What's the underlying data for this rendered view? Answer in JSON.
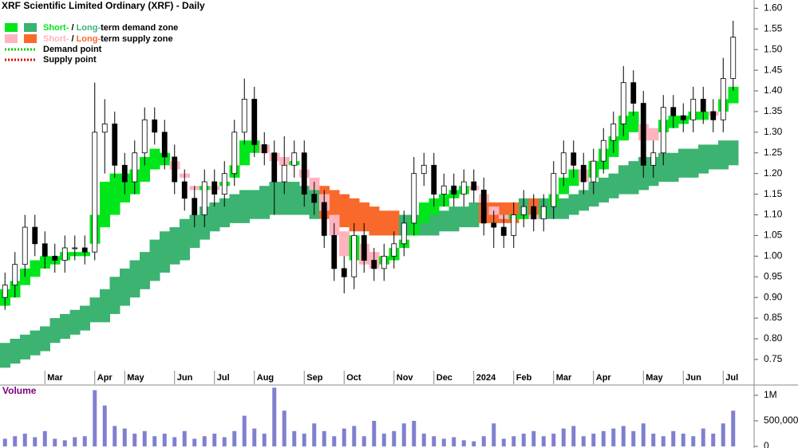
{
  "chart_data": {
    "type": "candlestick",
    "title": "XRF Scientific Limited Ordinary (XRF) - Daily",
    "legend": [
      [
        "Short-",
        " / ",
        "Long-",
        "term demand zone"
      ],
      [
        "Short-",
        " / ",
        "Long-",
        "term supply zone"
      ],
      "Demand point",
      "Supply point"
    ],
    "xlim": [
      -0.5,
      75.1
    ],
    "xticks": [
      {
        "value": 4,
        "label": "Mar"
      },
      {
        "value": 9,
        "label": "Apr"
      },
      {
        "value": 12,
        "label": "May"
      },
      {
        "value": 17,
        "label": "Jun"
      },
      {
        "value": 21,
        "label": "Jul"
      },
      {
        "value": 25,
        "label": "Aug"
      },
      {
        "value": 30,
        "label": "Sep"
      },
      {
        "value": 34,
        "label": "Oct"
      },
      {
        "value": 39,
        "label": "Nov"
      },
      {
        "value": 43,
        "label": "Dec"
      },
      {
        "value": 47,
        "label": "2024"
      },
      {
        "value": 51,
        "label": "Feb"
      },
      {
        "value": 55,
        "label": "Mar"
      },
      {
        "value": 59,
        "label": "Apr"
      },
      {
        "value": 64,
        "label": "May"
      },
      {
        "value": 68,
        "label": "Jun"
      },
      {
        "value": 72,
        "label": "Jul"
      }
    ],
    "ylim": [
      0.69,
      1.62
    ],
    "yticks": [
      0.75,
      {
        "value": 0.8,
        "label": "0.80"
      },
      0.85,
      {
        "value": 0.9,
        "label": "0.90"
      },
      0.95,
      {
        "value": 1.0,
        "label": "1.00"
      },
      1.05,
      {
        "value": 1.1,
        "label": "1.10"
      },
      1.15,
      {
        "value": 1.2,
        "label": "1.20"
      },
      1.25,
      {
        "value": 1.3,
        "label": "1.30"
      },
      1.35,
      {
        "value": 1.4,
        "label": "1.40"
      },
      1.45,
      {
        "value": 1.5,
        "label": "1.50"
      },
      1.55,
      {
        "value": 1.6,
        "label": "1.60"
      }
    ],
    "open": [
      0.9,
      0.93,
      0.98,
      1.07,
      1.03,
      1.0,
      0.99,
      1.02,
      1.02,
      1.01,
      1.3,
      1.32,
      1.22,
      1.18,
      1.25,
      1.33,
      1.3,
      1.24,
      1.18,
      1.14,
      1.1,
      1.18,
      1.15,
      1.2,
      1.3,
      1.38,
      1.27,
      1.25,
      1.18,
      1.22,
      1.25,
      1.15,
      1.13,
      1.05,
      0.97,
      0.95,
      1.05,
      0.99,
      0.97,
      1.0,
      1.03,
      1.08,
      1.2,
      1.22,
      1.15,
      1.17,
      1.15,
      1.18,
      1.16,
      1.08,
      1.07,
      1.05,
      1.1,
      1.12,
      1.09,
      1.12,
      1.2,
      1.25,
      1.22,
      1.18,
      1.23,
      1.28,
      1.32,
      1.42,
      1.37,
      1.22,
      1.25,
      1.36,
      1.34,
      1.33,
      1.38,
      1.35,
      1.33,
      1.43
    ],
    "high": [
      0.96,
      1.01,
      1.1,
      1.1,
      1.06,
      1.03,
      1.05,
      1.05,
      1.05,
      1.42,
      1.38,
      1.35,
      1.25,
      1.28,
      1.36,
      1.36,
      1.33,
      1.27,
      1.21,
      1.17,
      1.21,
      1.21,
      1.23,
      1.33,
      1.43,
      1.41,
      1.3,
      1.28,
      1.29,
      1.28,
      1.28,
      1.18,
      1.16,
      1.08,
      1.0,
      1.08,
      1.08,
      1.02,
      1.03,
      1.06,
      1.11,
      1.24,
      1.25,
      1.25,
      1.2,
      1.2,
      1.21,
      1.21,
      1.19,
      1.11,
      1.1,
      1.13,
      1.16,
      1.15,
      1.15,
      1.23,
      1.28,
      1.28,
      1.25,
      1.26,
      1.31,
      1.35,
      1.46,
      1.45,
      1.4,
      1.28,
      1.39,
      1.39,
      1.37,
      1.41,
      1.41,
      1.38,
      1.48,
      1.57
    ],
    "low": [
      0.87,
      0.9,
      0.95,
      1.0,
      0.97,
      0.96,
      0.96,
      0.99,
      0.98,
      0.99,
      1.2,
      1.19,
      1.15,
      1.15,
      1.22,
      1.27,
      1.21,
      1.15,
      1.11,
      1.07,
      1.07,
      1.12,
      1.12,
      1.17,
      1.27,
      1.24,
      1.22,
      1.1,
      1.15,
      1.19,
      1.12,
      1.1,
      1.02,
      0.94,
      0.91,
      0.92,
      0.96,
      0.94,
      0.94,
      0.97,
      1.0,
      1.05,
      1.17,
      1.12,
      1.12,
      1.12,
      1.12,
      1.13,
      1.05,
      1.02,
      1.02,
      1.02,
      1.07,
      1.06,
      1.06,
      1.09,
      1.17,
      1.19,
      1.15,
      1.15,
      1.2,
      1.25,
      1.29,
      1.34,
      1.19,
      1.19,
      1.22,
      1.31,
      1.3,
      1.3,
      1.32,
      1.3,
      1.3,
      1.4
    ],
    "close": [
      0.93,
      0.98,
      1.07,
      1.03,
      1.0,
      0.99,
      1.02,
      1.02,
      1.01,
      1.3,
      1.32,
      1.22,
      1.18,
      1.25,
      1.33,
      1.3,
      1.24,
      1.18,
      1.14,
      1.1,
      1.18,
      1.15,
      1.2,
      1.3,
      1.38,
      1.27,
      1.25,
      1.18,
      1.22,
      1.25,
      1.15,
      1.13,
      1.05,
      0.97,
      0.95,
      1.05,
      0.99,
      0.97,
      1.0,
      1.03,
      1.08,
      1.2,
      1.22,
      1.15,
      1.17,
      1.15,
      1.18,
      1.16,
      1.08,
      1.07,
      1.05,
      1.1,
      1.12,
      1.09,
      1.12,
      1.2,
      1.25,
      1.22,
      1.18,
      1.23,
      1.28,
      1.32,
      1.42,
      1.37,
      1.22,
      1.25,
      1.36,
      1.34,
      1.33,
      1.38,
      1.35,
      1.33,
      1.43,
      1.53
    ],
    "long_zone": {
      "demand_color": "#3cb371",
      "supply_color": "#f9692c",
      "upper": [
        0.79,
        0.8,
        0.81,
        0.82,
        0.83,
        0.85,
        0.86,
        0.87,
        0.88,
        0.9,
        0.92,
        0.95,
        0.97,
        0.99,
        1.01,
        1.04,
        1.06,
        1.07,
        1.09,
        1.1,
        1.12,
        1.13,
        1.14,
        1.15,
        1.16,
        1.16,
        1.17,
        1.18,
        1.18,
        1.18,
        1.17,
        1.17,
        1.17,
        1.16,
        1.15,
        1.14,
        1.13,
        1.12,
        1.11,
        1.11,
        1.1,
        1.1,
        1.1,
        1.11,
        1.11,
        1.12,
        1.12,
        1.13,
        1.13,
        1.13,
        1.13,
        1.13,
        1.14,
        1.14,
        1.14,
        1.14,
        1.14,
        1.15,
        1.16,
        1.18,
        1.19,
        1.2,
        1.22,
        1.23,
        1.24,
        1.24,
        1.25,
        1.25,
        1.26,
        1.26,
        1.27,
        1.27,
        1.28,
        1.28
      ],
      "lower": [
        0.73,
        0.74,
        0.75,
        0.76,
        0.77,
        0.79,
        0.8,
        0.81,
        0.82,
        0.84,
        0.84,
        0.86,
        0.88,
        0.9,
        0.92,
        0.94,
        0.96,
        0.98,
        0.99,
        1.02,
        1.04,
        1.06,
        1.07,
        1.08,
        1.08,
        1.09,
        1.09,
        1.1,
        1.1,
        1.1,
        1.1,
        1.09,
        1.09,
        1.08,
        1.07,
        1.06,
        1.06,
        1.05,
        1.05,
        1.05,
        1.05,
        1.05,
        1.05,
        1.05,
        1.06,
        1.06,
        1.07,
        1.07,
        1.08,
        1.08,
        1.08,
        1.08,
        1.09,
        1.09,
        1.09,
        1.09,
        1.09,
        1.1,
        1.11,
        1.12,
        1.13,
        1.14,
        1.15,
        1.15,
        1.16,
        1.17,
        1.18,
        1.18,
        1.19,
        1.19,
        1.2,
        1.21,
        1.21,
        1.22
      ]
    },
    "short_zone": {
      "demand_color": "#00e61a",
      "supply_color": "#ffb3bf",
      "upper": [
        0.92,
        0.94,
        0.97,
        0.99,
        1.0,
        1.0,
        1.01,
        1.01,
        1.01,
        1.1,
        1.18,
        1.2,
        1.2,
        1.21,
        1.24,
        1.26,
        1.25,
        1.23,
        1.2,
        1.17,
        1.17,
        1.17,
        1.18,
        1.22,
        1.28,
        1.28,
        1.27,
        1.25,
        1.24,
        1.23,
        1.21,
        1.19,
        1.15,
        1.1,
        1.06,
        1.05,
        1.03,
        1.01,
        1.0,
        1.02,
        1.04,
        1.09,
        1.13,
        1.14,
        1.15,
        1.16,
        1.17,
        1.17,
        1.15,
        1.12,
        1.1,
        1.1,
        1.1,
        1.1,
        1.11,
        1.15,
        1.19,
        1.21,
        1.21,
        1.23,
        1.26,
        1.29,
        1.34,
        1.35,
        1.32,
        1.31,
        1.33,
        1.34,
        1.34,
        1.35,
        1.35,
        1.35,
        1.38,
        1.41
      ],
      "lower": [
        0.88,
        0.9,
        0.93,
        0.95,
        0.97,
        0.98,
        0.99,
        1.0,
        1.0,
        1.03,
        1.07,
        1.1,
        1.13,
        1.15,
        1.18,
        1.21,
        1.22,
        1.21,
        1.19,
        1.16,
        1.16,
        1.16,
        1.17,
        1.19,
        1.22,
        1.25,
        1.25,
        1.23,
        1.22,
        1.22,
        1.19,
        1.16,
        1.11,
        1.05,
        1.0,
        0.99,
        0.98,
        0.97,
        0.98,
        0.99,
        1.02,
        1.05,
        1.08,
        1.1,
        1.12,
        1.14,
        1.15,
        1.16,
        1.13,
        1.1,
        1.09,
        1.09,
        1.09,
        1.09,
        1.1,
        1.12,
        1.15,
        1.17,
        1.18,
        1.19,
        1.21,
        1.24,
        1.28,
        1.3,
        1.28,
        1.28,
        1.3,
        1.31,
        1.32,
        1.33,
        1.33,
        1.34,
        1.35,
        1.37
      ]
    },
    "volume": {
      "title": "Volume",
      "color": "#8080d0",
      "ylim": [
        0,
        1170000
      ],
      "yticks": [
        0,
        {
          "value": 500000,
          "label": "500,000"
        },
        {
          "value": 1000000,
          "label": "1M"
        }
      ],
      "values": [
        150000,
        200000,
        250000,
        180000,
        300000,
        150000,
        120000,
        180000,
        200000,
        1100000,
        800000,
        400000,
        350000,
        250000,
        300000,
        200000,
        250000,
        180000,
        300000,
        150000,
        200000,
        250000,
        180000,
        300000,
        600000,
        350000,
        250000,
        1150000,
        700000,
        300000,
        250000,
        450000,
        300000,
        200000,
        350000,
        400000,
        200000,
        500000,
        250000,
        300000,
        450000,
        500000,
        250000,
        200000,
        150000,
        180000,
        120000,
        100000,
        200000,
        450000,
        150000,
        200000,
        250000,
        300000,
        200000,
        250000,
        350000,
        400000,
        200000,
        250000,
        300000,
        350000,
        400000,
        300000,
        450000,
        250000,
        200000,
        300000,
        250000,
        200000,
        350000,
        250000,
        450000,
        700000
      ]
    }
  }
}
